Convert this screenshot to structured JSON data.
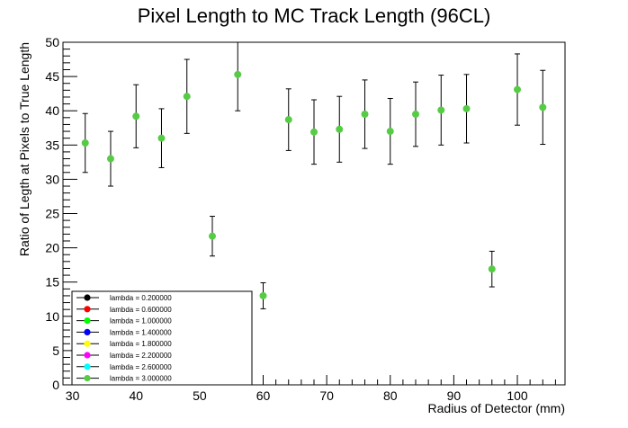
{
  "chart_data": {
    "type": "scatter",
    "title": "Pixel Length to MC Track Length (96CL)",
    "xlabel": "Radius of Detector (mm)",
    "ylabel": "Ratio of Legth at Pixels to True Length",
    "xlim": [
      28.5,
      107.5
    ],
    "ylim": [
      0,
      50
    ],
    "x_ticks": [
      30,
      40,
      50,
      60,
      70,
      80,
      90,
      100
    ],
    "y_ticks": [
      0,
      5,
      10,
      15,
      20,
      25,
      30,
      35,
      40,
      45,
      50
    ],
    "grid": false,
    "legend_position": "bottom-left",
    "legend": [
      {
        "label": "lambda = 0.200000",
        "color": "#000000"
      },
      {
        "label": "lambda = 0.600000",
        "color": "#ff0000"
      },
      {
        "label": "lambda = 1.000000",
        "color": "#00ff00"
      },
      {
        "label": "lambda = 1.400000",
        "color": "#0000ff"
      },
      {
        "label": "lambda = 1.800000",
        "color": "#ffff00"
      },
      {
        "label": "lambda = 2.200000",
        "color": "#ff00ff"
      },
      {
        "label": "lambda = 2.600000",
        "color": "#00ffff"
      },
      {
        "label": "lambda = 3.000000",
        "color": "#55cc44"
      }
    ],
    "series": [
      {
        "color": "#55cc44",
        "points": [
          {
            "x": 32,
            "y": 35.3,
            "err": 4.3
          },
          {
            "x": 36,
            "y": 33.0,
            "err": 4.0
          },
          {
            "x": 40,
            "y": 39.2,
            "err": 4.6
          },
          {
            "x": 44,
            "y": 36.0,
            "err": 4.3
          },
          {
            "x": 48,
            "y": 42.1,
            "err": 5.4
          },
          {
            "x": 52,
            "y": 21.7,
            "err": 2.9
          },
          {
            "x": 56,
            "y": 45.3,
            "err": 5.3
          },
          {
            "x": 60,
            "y": 13.0,
            "err": 1.9
          },
          {
            "x": 64,
            "y": 38.7,
            "err": 4.5
          },
          {
            "x": 68,
            "y": 36.9,
            "err": 4.7
          },
          {
            "x": 72,
            "y": 37.3,
            "err": 4.8
          },
          {
            "x": 76,
            "y": 39.5,
            "err": 5.0
          },
          {
            "x": 80,
            "y": 37.0,
            "err": 4.8
          },
          {
            "x": 84,
            "y": 39.5,
            "err": 4.7
          },
          {
            "x": 88,
            "y": 40.1,
            "err": 5.1
          },
          {
            "x": 92,
            "y": 40.3,
            "err": 5.0
          },
          {
            "x": 96,
            "y": 16.9,
            "err": 2.6
          },
          {
            "x": 100,
            "y": 43.1,
            "err": 5.2
          },
          {
            "x": 104,
            "y": 40.5,
            "err": 5.4
          }
        ]
      }
    ]
  }
}
